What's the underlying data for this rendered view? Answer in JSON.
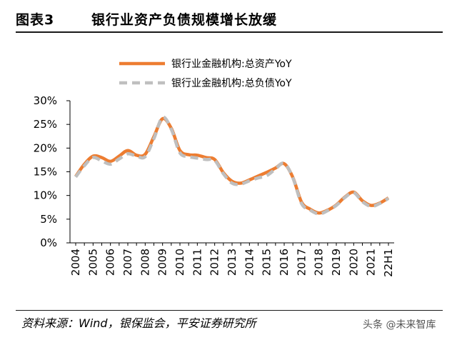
{
  "header": {
    "figure_label": "图表3",
    "title": "银行业资产负债规模增长放缓"
  },
  "source": "资料来源：Wind，银保监会，平安证券研究所",
  "watermark": "头条 @未来智库",
  "colors": {
    "assets": "#ED7D31",
    "liabilities": "#BFBFBF"
  },
  "chart_data": {
    "type": "line",
    "categories": [
      "2004",
      "",
      "2005",
      "",
      "2006",
      "",
      "2007",
      "",
      "2008",
      "",
      "2009",
      "",
      "2010",
      "",
      "2011",
      "",
      "2012",
      "",
      "2013",
      "",
      "2014",
      "",
      "2015",
      "",
      "2016",
      "",
      "2017",
      "",
      "2018",
      "",
      "2019",
      "",
      "2020",
      "",
      "2021",
      "",
      "22H1"
    ],
    "series": [
      {
        "name": "银行业金融机构:总资产YoY",
        "style": "solid",
        "values": [
          14.0,
          16.6,
          18.3,
          18.0,
          17.2,
          18.3,
          19.5,
          18.5,
          18.7,
          22.4,
          26.2,
          24.2,
          19.5,
          18.6,
          18.5,
          18.0,
          17.6,
          14.8,
          13.0,
          12.6,
          13.3,
          14.1,
          14.9,
          15.8,
          16.7,
          13.8,
          8.6,
          7.1,
          6.3,
          6.9,
          8.0,
          9.7,
          10.7,
          8.9,
          7.9,
          8.4,
          9.5
        ]
      },
      {
        "name": "银行业金融机构:总负债YoY",
        "style": "dashed",
        "values": [
          13.9,
          16.3,
          18.0,
          17.3,
          16.6,
          17.7,
          18.8,
          18.3,
          18.2,
          22.0,
          26.5,
          24.0,
          19.0,
          18.2,
          17.9,
          17.6,
          17.4,
          14.6,
          12.6,
          12.4,
          13.1,
          13.7,
          14.2,
          15.6,
          16.8,
          13.7,
          8.3,
          6.9,
          6.1,
          6.8,
          7.9,
          9.6,
          10.6,
          8.7,
          7.7,
          8.3,
          9.4
        ]
      }
    ],
    "y_ticks": [
      "0%",
      "5%",
      "10%",
      "15%",
      "20%",
      "25%",
      "30%"
    ],
    "ylim": [
      0,
      30
    ],
    "legend": "top-center",
    "grid": false
  }
}
